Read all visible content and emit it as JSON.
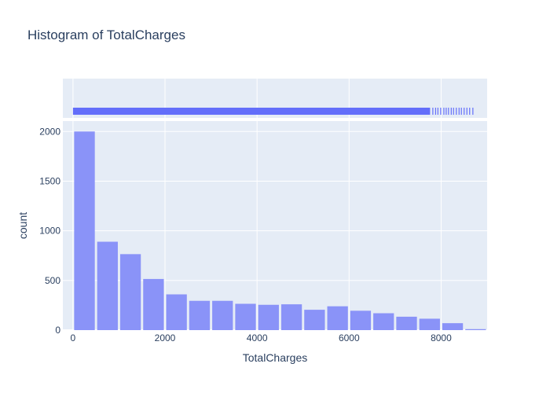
{
  "chart_data": {
    "type": "bar",
    "title": "Histogram of TotalCharges",
    "xlabel": "TotalCharges",
    "ylabel": "count",
    "bin_start": 0,
    "bin_size": 500,
    "values": [
      2000,
      890,
      765,
      515,
      360,
      295,
      295,
      265,
      255,
      260,
      205,
      240,
      195,
      170,
      135,
      115,
      70,
      10
    ],
    "x_ticks": [
      0,
      2000,
      4000,
      6000,
      8000
    ],
    "x_tick_labels": [
      "0",
      "2000",
      "4000",
      "6000",
      "8000"
    ],
    "y_ticks": [
      0,
      500,
      1000,
      1500,
      2000
    ],
    "y_tick_labels": [
      "0",
      "500",
      "1000",
      "1500",
      "2000"
    ],
    "xlim": [
      -220,
      9000
    ],
    "ylim": [
      0,
      2105
    ],
    "marginal": {
      "type": "rug",
      "range": [
        0,
        8700
      ],
      "sparse_tail": [
        7750,
        7820,
        7880,
        7930,
        7990,
        8060,
        8110,
        8160,
        8220,
        8270,
        8330,
        8390,
        8440,
        8500,
        8560,
        8620,
        8690
      ]
    },
    "grid": true,
    "colors": {
      "bar": "#8a93f8",
      "rug": "#636efa",
      "plot_bg": "#e5ecf6",
      "grid": "#ffffff",
      "text": "#2a3f5f"
    }
  }
}
